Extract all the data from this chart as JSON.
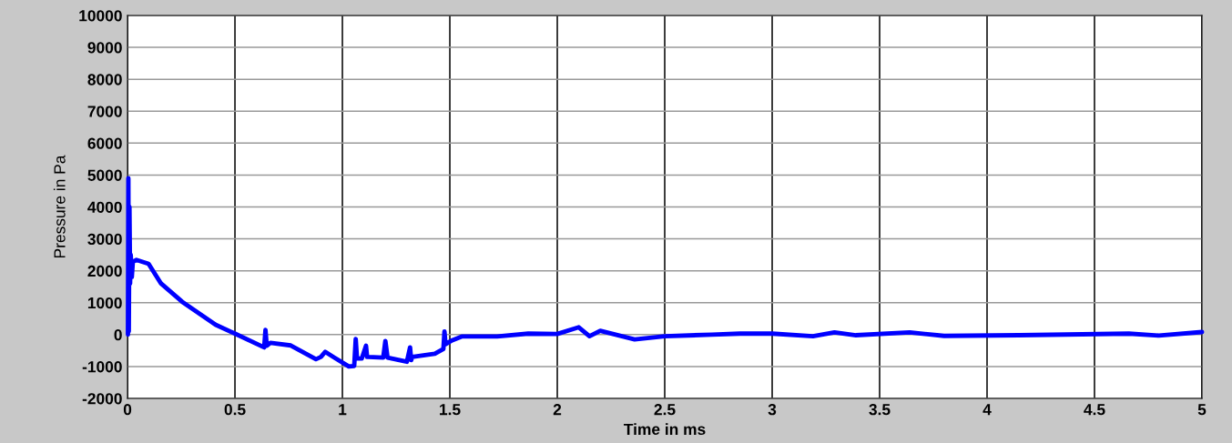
{
  "chart_data": {
    "type": "line",
    "xlabel": "Time in ms",
    "ylabel": "Pressure in Pa",
    "xlim": [
      0,
      5
    ],
    "xticks": [
      0,
      0.5,
      1,
      1.5,
      2,
      2.5,
      3,
      3.5,
      4,
      4.5,
      5
    ],
    "ylim": [
      -2000,
      10000
    ],
    "yticks": [
      -2000,
      -1000,
      0,
      1000,
      2000,
      3000,
      4000,
      5000,
      6000,
      7000,
      8000,
      9000,
      10000
    ],
    "grid": true,
    "marker": "none",
    "line_style": "solid",
    "series": [
      {
        "color": "#0000ff",
        "x": [
          0.002,
          0.004,
          0.006,
          0.009,
          0.012,
          0.015,
          0.02,
          0.025,
          0.03,
          0.042,
          0.098,
          0.156,
          0.254,
          0.41,
          0.5,
          0.636,
          0.642,
          0.648,
          0.665,
          0.76,
          0.877,
          0.9,
          0.92,
          0.96,
          1.03,
          1.055,
          1.062,
          1.068,
          1.09,
          1.11,
          1.115,
          1.12,
          1.19,
          1.2,
          1.21,
          1.3,
          1.315,
          1.32,
          1.325,
          1.43,
          1.47,
          1.475,
          1.48,
          1.51,
          1.555,
          1.72,
          1.865,
          2.0,
          2.1,
          2.15,
          2.2,
          2.36,
          2.5,
          2.72,
          2.85,
          3.0,
          3.19,
          3.29,
          3.39,
          3.64,
          3.8,
          4.15,
          4.66,
          4.8,
          5.0
        ],
        "values": [
          0,
          4900,
          100,
          4000,
          1600,
          2500,
          1800,
          2300,
          2300,
          2340,
          2220,
          1600,
          1030,
          310,
          30,
          -400,
          150,
          -350,
          -260,
          -340,
          -770,
          -700,
          -540,
          -710,
          -1000,
          -980,
          -140,
          -750,
          -750,
          -350,
          -700,
          -700,
          -720,
          -200,
          -720,
          -850,
          -400,
          -800,
          -700,
          -600,
          -450,
          100,
          -300,
          -180,
          -60,
          -60,
          30,
          20,
          230,
          -50,
          120,
          -150,
          -50,
          0,
          30,
          30,
          -50,
          70,
          -20,
          70,
          -40,
          -20,
          30,
          -30,
          80
        ]
      }
    ]
  }
}
